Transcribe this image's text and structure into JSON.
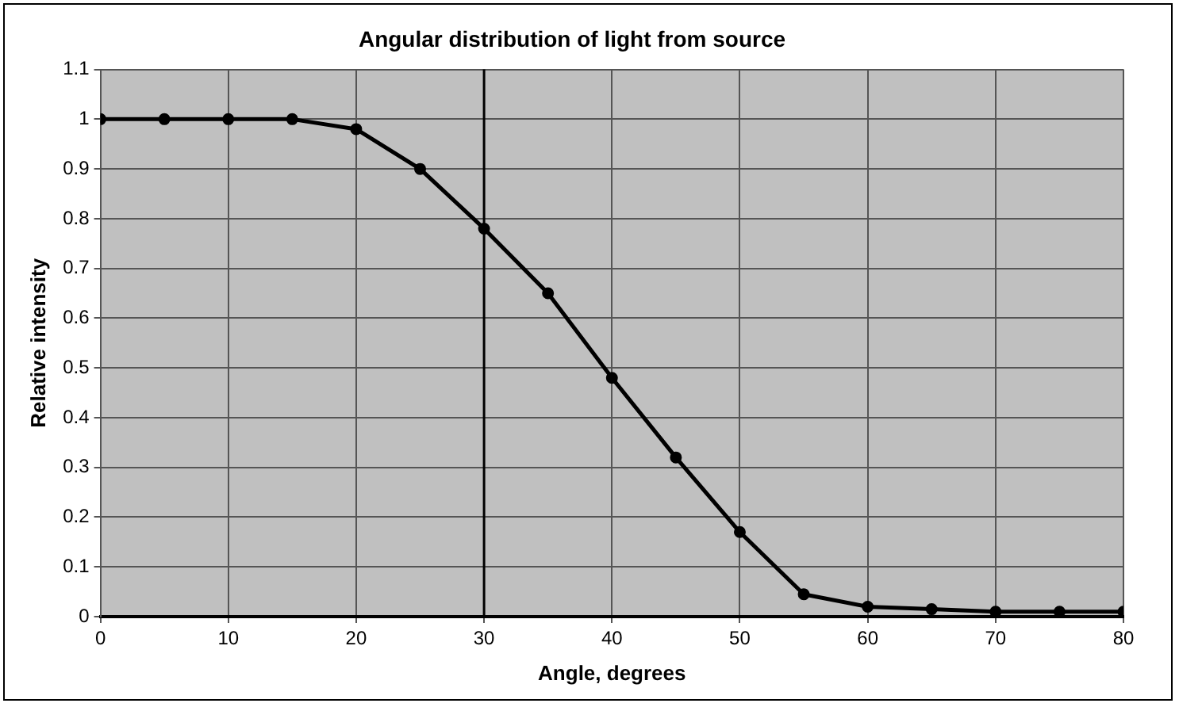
{
  "chart_data": {
    "type": "line",
    "title": "Angular distribution of light from source",
    "xlabel": "Angle, degrees",
    "ylabel": "Relative intensity",
    "x": [
      0,
      5,
      10,
      15,
      20,
      25,
      30,
      35,
      40,
      45,
      50,
      55,
      60,
      65,
      70,
      75,
      80
    ],
    "series": [
      {
        "color": "#000000",
        "values": [
          1,
          1,
          1,
          1,
          0.98,
          0.9,
          0.78,
          0.65,
          0.48,
          0.32,
          0.17,
          0.045,
          0.02,
          0.015,
          0.01,
          0.01,
          0.01
        ]
      }
    ],
    "xlim": [
      0,
      80
    ],
    "xticks": [
      0,
      10,
      20,
      30,
      40,
      50,
      60,
      70,
      80
    ],
    "ylim": [
      0,
      1.1
    ],
    "yticks": [
      0,
      0.1,
      0.2,
      0.3,
      0.4,
      0.5,
      0.6,
      0.7,
      0.8,
      0.9,
      1,
      1.1
    ],
    "ref_lines": [
      {
        "axis": "x",
        "value": 30,
        "color": "#000000"
      }
    ],
    "grid": true,
    "legend": false,
    "marker": "circle",
    "line_style": "solid"
  }
}
